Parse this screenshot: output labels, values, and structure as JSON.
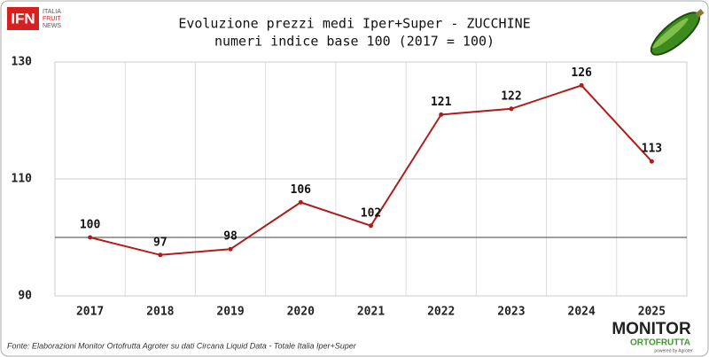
{
  "chart_data": {
    "type": "line",
    "title": "Evoluzione prezzi medi Iper+Super - ZUCCHINE",
    "subtitle": "numeri indice base 100 (2017 = 100)",
    "categories": [
      "2017",
      "2018",
      "2019",
      "2020",
      "2021",
      "2022",
      "2023",
      "2024",
      "2025"
    ],
    "series": [
      {
        "name": "ZUCCHINE",
        "color": "#b01c1c",
        "values": [
          100,
          97,
          98,
          106,
          102,
          121,
          122,
          126,
          113
        ]
      }
    ],
    "ylim": [
      90,
      130
    ],
    "yticks": [
      90,
      110,
      130
    ],
    "grid": true,
    "reference_line": 100,
    "source": "Fonte: Elaborazioni Monitor Ortofrutta Agroter su dati Circana Liquid Data - Totale Italia Iper+Super"
  },
  "logos": {
    "left": {
      "mark": "IFN",
      "lines": [
        "ITALIA",
        "FRUIT",
        "NEWS"
      ]
    },
    "right": {
      "mark": "MONITOR",
      "sub": "ORTOFRUTTA",
      "tag": "powered by Agroter"
    }
  }
}
